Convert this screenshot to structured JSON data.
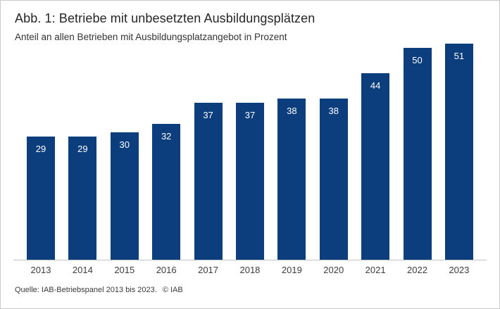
{
  "chart_data": {
    "type": "bar",
    "title": "Abb. 1: Betriebe mit unbesetzten Ausbildungsplätzen",
    "subtitle": "Anteil an allen Betrieben mit Ausbildungsplatzangebot in Prozent",
    "categories": [
      "2013",
      "2014",
      "2015",
      "2016",
      "2017",
      "2018",
      "2019",
      "2020",
      "2021",
      "2022",
      "2023"
    ],
    "values": [
      29,
      29,
      30,
      32,
      37,
      37,
      38,
      38,
      44,
      50,
      51
    ],
    "xlabel": "",
    "ylabel": "",
    "ylim": [
      0,
      51
    ],
    "grid": false,
    "legend": "none",
    "value_labels": "inside-top",
    "source": "Quelle: IAB-Betriebspanel 2013 bis 2023.",
    "copyright": "© IAB",
    "colors": {
      "bar": "#0c3e7d",
      "bar_label": "#ffffff",
      "axis_line": "#c3c3c3",
      "frame_border": "#c9c9c9",
      "title_text": "#262626",
      "subtitle_text": "#333333",
      "tick_text": "#3d3d3d",
      "background": "#ffffff"
    }
  }
}
